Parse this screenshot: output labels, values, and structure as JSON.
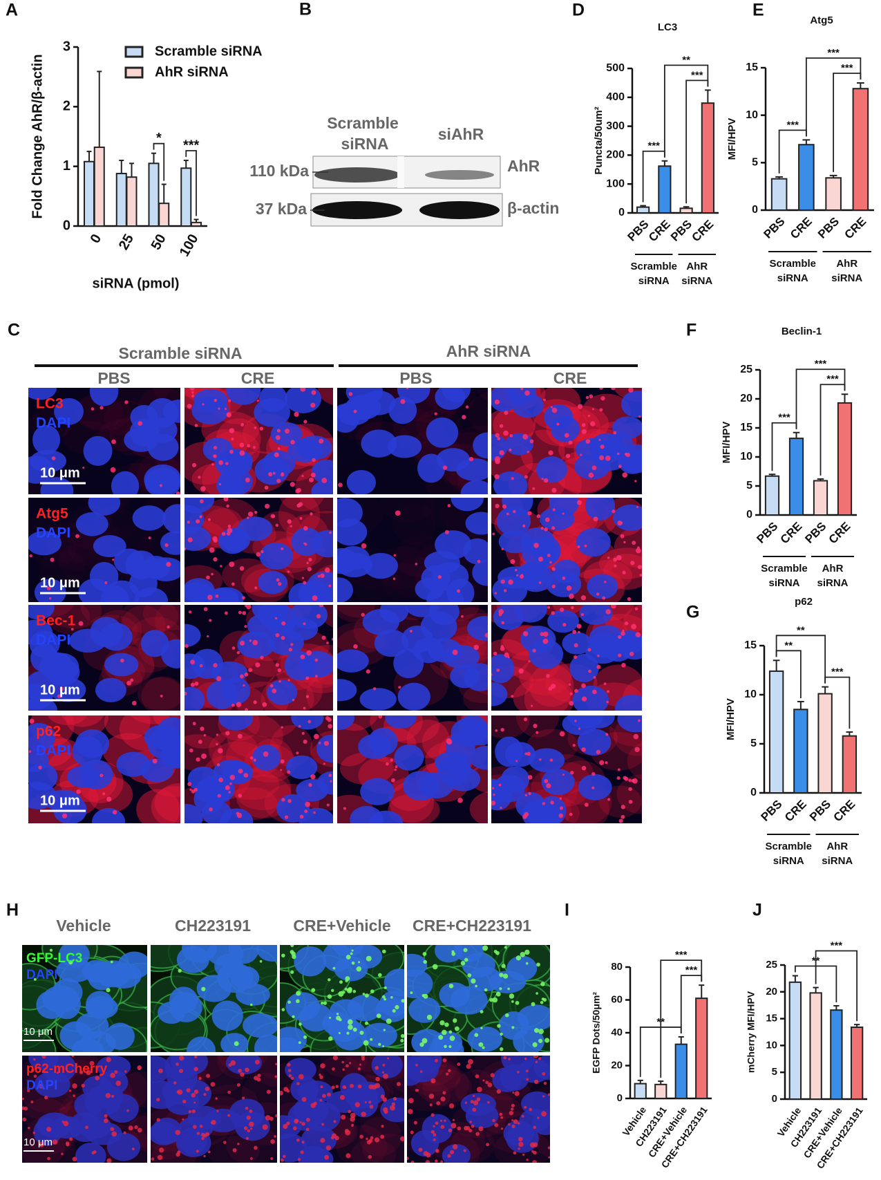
{
  "panel_labels": [
    "A",
    "B",
    "C",
    "D",
    "E",
    "F",
    "G",
    "H",
    "I",
    "J"
  ],
  "blot": {
    "lanes": [
      [
        "Scramble",
        "siRNA"
      ],
      [
        "siAhR"
      ]
    ],
    "markers": [
      "110 kDa",
      "37 kDa"
    ],
    "bands": [
      "AhR",
      "β-actin"
    ]
  },
  "panel_c": {
    "groups": [
      "Scramble siRNA",
      "AhR siRNA"
    ],
    "columns": [
      "PBS",
      "CRE",
      "PBS",
      "CRE"
    ],
    "rows": [
      [
        "LC3",
        "DAPI"
      ],
      [
        "Atg5",
        "DAPI"
      ],
      [
        "Bec-1",
        "DAPI"
      ],
      [
        "p62",
        "DAPI"
      ]
    ],
    "scale_bar": "10 μm"
  },
  "panel_h": {
    "columns": [
      "Vehicle",
      "CH223191",
      "CRE+Vehicle",
      "CRE+CH223191"
    ],
    "rows": [
      [
        "GFP-LC3",
        "DAPI"
      ],
      [
        "p62-mCherry",
        "DAPI"
      ]
    ],
    "scale_bar": "10 μm"
  },
  "chart_data": [
    {
      "type": "grouped-bar",
      "y_label": "Fold Change AhR/β-actin",
      "x_label": "siRNA (pmol)",
      "categories": [
        "0",
        "25",
        "50",
        "100"
      ],
      "series": [
        {
          "name": "Scramble siRNA",
          "color": "#c6dcf4",
          "values": [
            1.08,
            0.88,
            1.05,
            0.97
          ],
          "errors": [
            0.17,
            0.22,
            0.17,
            0.13
          ]
        },
        {
          "name": "AhR siRNA",
          "color": "#f9d6d2",
          "values": [
            1.32,
            0.82,
            0.38,
            0.06
          ],
          "errors": [
            1.27,
            0.23,
            0.32,
            0.05
          ]
        }
      ],
      "ylim": [
        0,
        3
      ],
      "yticks": [
        0,
        1,
        2,
        3
      ],
      "significance": [
        {
          "label": "*",
          "from": [
            0,
            2
          ],
          "to": [
            1,
            2
          ]
        },
        {
          "label": "***",
          "from": [
            0,
            3
          ],
          "to": [
            1,
            3
          ]
        }
      ]
    },
    {
      "type": "bar",
      "title": "LC3",
      "y_label": "Puncta/50um²",
      "categories": [
        "PBS",
        "CRE",
        "PBS",
        "CRE"
      ],
      "values": [
        20,
        162,
        16,
        380
      ],
      "errors": [
        5,
        18,
        5,
        45
      ],
      "colors": [
        "#c6dcf4",
        "#3b8ee8",
        "#f9d6d2",
        "#f07272"
      ],
      "ylim": [
        0,
        500
      ],
      "yticks": [
        0,
        100,
        200,
        300,
        400,
        500
      ],
      "significance": [
        {
          "label": "***",
          "from": 0,
          "to": 1
        },
        {
          "label": "***",
          "from": 2,
          "to": 3
        },
        {
          "label": "**",
          "from": 1,
          "to": 3
        }
      ],
      "groups": [
        {
          "lines": [
            "Scramble",
            "siRNA"
          ],
          "from": 0,
          "to": 1
        },
        {
          "lines": [
            "AhR",
            "siRNA"
          ],
          "from": 2,
          "to": 3
        }
      ]
    },
    {
      "type": "bar",
      "title": "Atg5",
      "y_label": "MFI/HPV",
      "categories": [
        "PBS",
        "CRE",
        "PBS",
        "CRE"
      ],
      "values": [
        3.3,
        6.9,
        3.4,
        12.8
      ],
      "errors": [
        0.2,
        0.5,
        0.25,
        0.6
      ],
      "colors": [
        "#c6dcf4",
        "#3b8ee8",
        "#f9d6d2",
        "#f07272"
      ],
      "ylim": [
        0,
        15
      ],
      "yticks": [
        0,
        5,
        10,
        15
      ],
      "significance": [
        {
          "label": "***",
          "from": 0,
          "to": 1
        },
        {
          "label": "***",
          "from": 2,
          "to": 3
        },
        {
          "label": "***",
          "from": 1,
          "to": 3
        }
      ],
      "groups": [
        {
          "lines": [
            "Scramble",
            "siRNA"
          ],
          "from": 0,
          "to": 1
        },
        {
          "lines": [
            "AhR",
            "siRNA"
          ],
          "from": 2,
          "to": 3
        }
      ]
    },
    {
      "type": "bar",
      "title": "Beclin-1",
      "y_label": "MFI/HPV",
      "categories": [
        "PBS",
        "CRE",
        "PBS",
        "CRE"
      ],
      "values": [
        6.7,
        13.2,
        5.9,
        19.3
      ],
      "errors": [
        0.3,
        1,
        0.3,
        1.5
      ],
      "colors": [
        "#c6dcf4",
        "#3b8ee8",
        "#f9d6d2",
        "#f07272"
      ],
      "ylim": [
        0,
        25
      ],
      "yticks": [
        0,
        5,
        10,
        15,
        20,
        25
      ],
      "significance": [
        {
          "label": "***",
          "from": 0,
          "to": 1
        },
        {
          "label": "***",
          "from": 2,
          "to": 3
        },
        {
          "label": "***",
          "from": 1,
          "to": 3
        }
      ],
      "groups": [
        {
          "lines": [
            "Scramble",
            "siRNA"
          ],
          "from": 0,
          "to": 1
        },
        {
          "lines": [
            "AhR",
            "siRNA"
          ],
          "from": 2,
          "to": 3
        }
      ]
    },
    {
      "type": "bar",
      "title": "p62",
      "y_label": "MFI/HPV",
      "categories": [
        "PBS",
        "CRE",
        "PBS",
        "CRE"
      ],
      "values": [
        12.4,
        8.5,
        10.1,
        5.8
      ],
      "errors": [
        1.1,
        0.8,
        0.7,
        0.4
      ],
      "colors": [
        "#c6dcf4",
        "#3b8ee8",
        "#f9d6d2",
        "#f07272"
      ],
      "ylim": [
        0,
        15
      ],
      "yticks": [
        0,
        5,
        10,
        15
      ],
      "significance": [
        {
          "label": "**",
          "from": 0,
          "to": 1
        },
        {
          "label": "***",
          "from": 2,
          "to": 3
        },
        {
          "label": "**",
          "from": 0,
          "to": 2
        }
      ],
      "groups": [
        {
          "lines": [
            "Scramble",
            "siRNA"
          ],
          "from": 0,
          "to": 1
        },
        {
          "lines": [
            "AhR",
            "siRNA"
          ],
          "from": 2,
          "to": 3
        }
      ]
    },
    {
      "type": "bar",
      "y_label": "EGFP Dots/50μm²",
      "categories": [
        "Vehicle",
        "CH223191",
        "CRE+Vehicle",
        "CRE+CH223191"
      ],
      "values": [
        9,
        8.5,
        33,
        61
      ],
      "errors": [
        2,
        2,
        4.5,
        8
      ],
      "colors": [
        "#c6dcf4",
        "#f9d6d2",
        "#3b8ee8",
        "#f07272"
      ],
      "ylim": [
        0,
        80
      ],
      "yticks": [
        0,
        20,
        40,
        60,
        80
      ],
      "significance": [
        {
          "label": "**",
          "from": 0,
          "to": 2
        },
        {
          "label": "***",
          "from": 2,
          "to": 3
        },
        {
          "label": "***",
          "from": 1,
          "to": 3
        }
      ]
    },
    {
      "type": "bar",
      "y_label": "mCherry MFI/HPV",
      "categories": [
        "Vehicle",
        "CH223191",
        "CRE+Vehicle",
        "CRE+CH223191"
      ],
      "values": [
        21.8,
        19.8,
        16.6,
        13.4
      ],
      "errors": [
        1.2,
        1,
        0.8,
        0.5
      ],
      "colors": [
        "#c6dcf4",
        "#f9d6d2",
        "#3b8ee8",
        "#f07272"
      ],
      "ylim": [
        0,
        25
      ],
      "yticks": [
        0,
        5,
        10,
        15,
        20,
        25
      ],
      "significance": [
        {
          "label": "**",
          "from": 0,
          "to": 2
        },
        {
          "label": "***",
          "from": 1,
          "to": 3
        }
      ]
    }
  ]
}
